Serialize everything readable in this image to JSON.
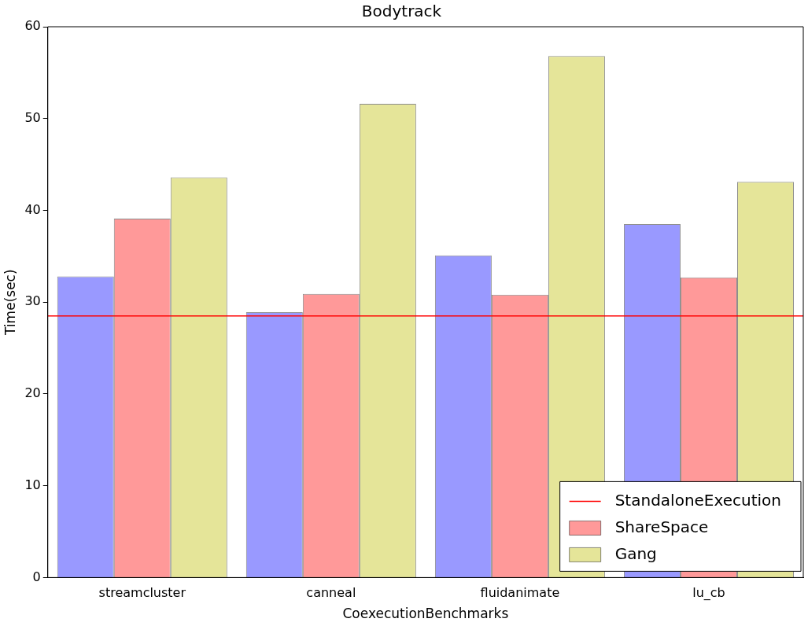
{
  "chart_data": {
    "type": "bar",
    "title": "Bodytrack",
    "xlabel": "CoexecutionBenchmarks",
    "ylabel": "Time(sec)",
    "categories": [
      "streamcluster",
      "canneal",
      "fluidanimate",
      "lu_cb"
    ],
    "series": [
      {
        "color": "#9999ff",
        "values": [
          32.8,
          28.9,
          35.1,
          38.5
        ]
      },
      {
        "name": "ShareSpace",
        "color": "#ff9999",
        "values": [
          39.1,
          30.9,
          30.8,
          32.7
        ]
      },
      {
        "name": "Gang",
        "color": "#e5e599",
        "values": [
          43.6,
          51.6,
          56.8,
          43.1
        ]
      }
    ],
    "ylim": [
      0,
      60
    ],
    "yticks": [
      0,
      10,
      20,
      30,
      40,
      50,
      60
    ],
    "grid": false,
    "legend": "bottom right",
    "ref_lines": [
      {
        "axis": "y",
        "value": 28.5,
        "label": "StandaloneExecution",
        "color": "#ff0000",
        "line_style": "solid"
      }
    ]
  }
}
